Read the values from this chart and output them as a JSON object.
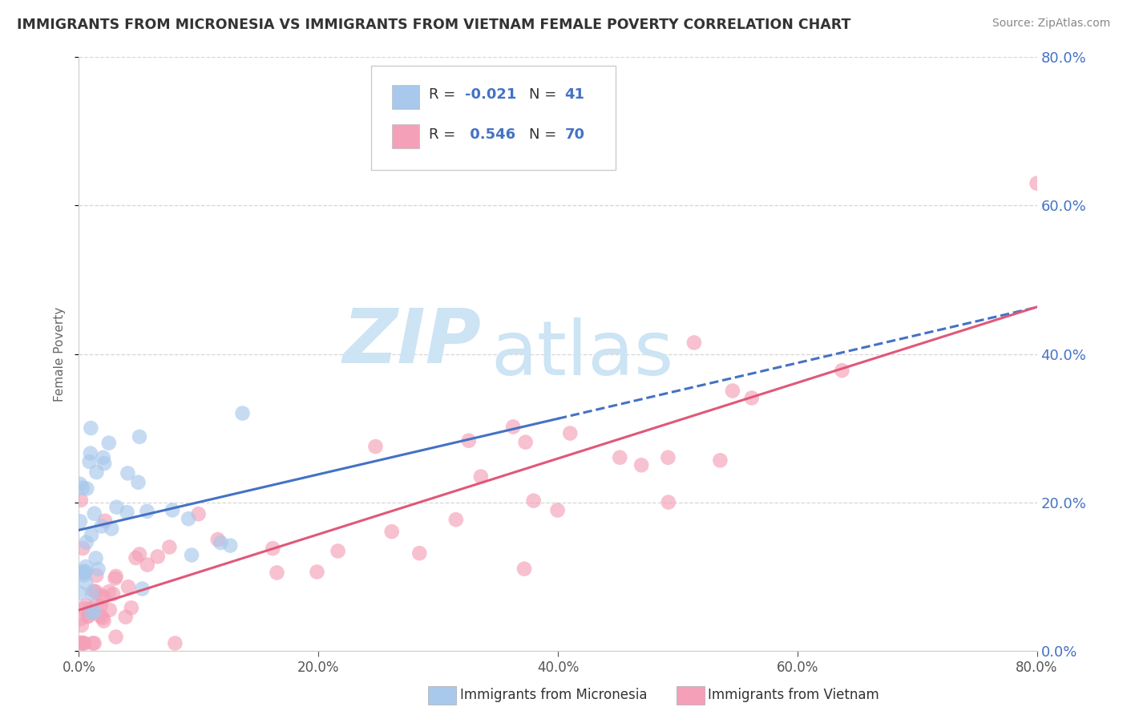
{
  "title": "IMMIGRANTS FROM MICRONESIA VS IMMIGRANTS FROM VIETNAM FEMALE POVERTY CORRELATION CHART",
  "source": "Source: ZipAtlas.com",
  "ylabel": "Female Poverty",
  "xlim": [
    0.0,
    0.8
  ],
  "ylim": [
    0.0,
    0.8
  ],
  "ytick_values": [
    0.0,
    0.2,
    0.4,
    0.6,
    0.8
  ],
  "xtick_values": [
    0.0,
    0.2,
    0.4,
    0.6,
    0.8
  ],
  "color_micronesia": "#a8c8ec",
  "color_vietnam": "#f4a0b8",
  "trendline_micronesia_color": "#4472c4",
  "trendline_vietnam_color": "#e05878",
  "watermark_zip": "ZIP",
  "watermark_atlas": "atlas",
  "watermark_color": "#cce4f4",
  "legend_r1": "-0.021",
  "legend_n1": "41",
  "legend_r2": "0.546",
  "legend_n2": "70",
  "background_color": "#ffffff",
  "grid_color": "#cccccc",
  "tick_label_color": "#4472c4",
  "title_color": "#333333",
  "source_color": "#888888",
  "label_bottom_mic": "Immigrants from Micronesia",
  "label_bottom_viet": "Immigrants from Vietnam"
}
